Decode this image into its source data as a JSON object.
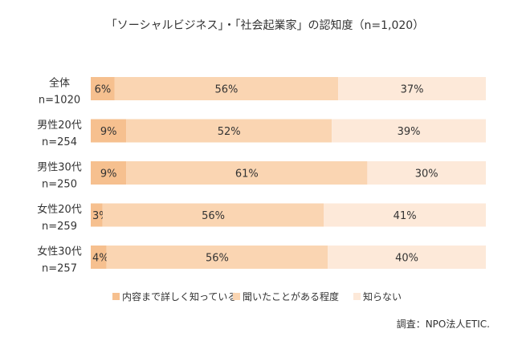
{
  "chart_data": {
    "type": "bar",
    "orientation": "horizontal",
    "stacked": true,
    "title": "「ソーシャルビジネス」・「社会起業家」の認知度（n=1,020）",
    "categories": [
      [
        "全体",
        "n=1020"
      ],
      [
        "男性20代",
        "n=254"
      ],
      [
        "男性30代",
        "n=250"
      ],
      [
        "女性20代",
        "n=259"
      ],
      [
        "女性30代",
        "n=257"
      ]
    ],
    "series": [
      {
        "name": "内容まで詳しく知っている",
        "color": "#f6c08f",
        "values": [
          6,
          9,
          9,
          3,
          4
        ]
      },
      {
        "name": "聞いたことがある程度",
        "color": "#fad5b2",
        "values": [
          56,
          52,
          61,
          56,
          56
        ]
      },
      {
        "name": "知らない",
        "color": "#fde9d9",
        "values": [
          37,
          39,
          30,
          41,
          40
        ]
      }
    ],
    "value_suffix": "%",
    "legend_position": "bottom",
    "source": "調査：NPO法人ETIC."
  }
}
